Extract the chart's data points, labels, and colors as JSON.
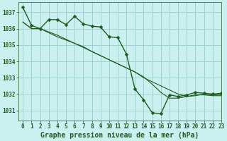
{
  "title": "Graphe pression niveau de la mer (hPa)",
  "background_color": "#caf0f0",
  "grid_color": "#99cccc",
  "line_color": "#1e5c1e",
  "xlim": [
    -0.5,
    23
  ],
  "ylim": [
    1030.4,
    1037.6
  ],
  "yticks": [
    1031,
    1032,
    1033,
    1034,
    1035,
    1036,
    1037
  ],
  "xticks": [
    0,
    1,
    2,
    3,
    4,
    5,
    6,
    7,
    8,
    9,
    10,
    11,
    12,
    13,
    14,
    15,
    16,
    17,
    18,
    19,
    20,
    21,
    22,
    23
  ],
  "series1": [
    1037.3,
    1036.2,
    1036.0,
    1036.55,
    1036.55,
    1036.25,
    1036.75,
    1036.3,
    1036.15,
    1036.1,
    1035.5,
    1035.45,
    1034.45,
    1032.3,
    1031.65,
    1030.85,
    1030.8,
    1031.95,
    1031.85,
    1031.95,
    1032.1,
    1032.05,
    1032.0,
    1032.05
  ],
  "series2": [
    1036.4,
    1036.0,
    1036.0,
    1035.8,
    1035.6,
    1035.35,
    1035.1,
    1034.9,
    1034.6,
    1034.35,
    1034.1,
    1033.85,
    1033.6,
    1033.35,
    1033.0,
    1032.75,
    1032.5,
    1032.25,
    1032.0,
    1031.85,
    1031.9,
    1032.0,
    1031.95,
    1031.95
  ],
  "series3": [
    1036.4,
    1036.0,
    1036.0,
    1035.75,
    1035.5,
    1035.3,
    1035.1,
    1034.85,
    1034.6,
    1034.35,
    1034.1,
    1033.85,
    1033.6,
    1033.35,
    1033.05,
    1032.6,
    1032.1,
    1031.75,
    1031.75,
    1031.85,
    1031.95,
    1031.95,
    1031.9,
    1031.9
  ],
  "title_fontsize": 7,
  "tick_fontsize": 5.5,
  "marker_size": 2.5,
  "lw1": 1.0,
  "lw2": 0.8,
  "lw3": 0.8
}
